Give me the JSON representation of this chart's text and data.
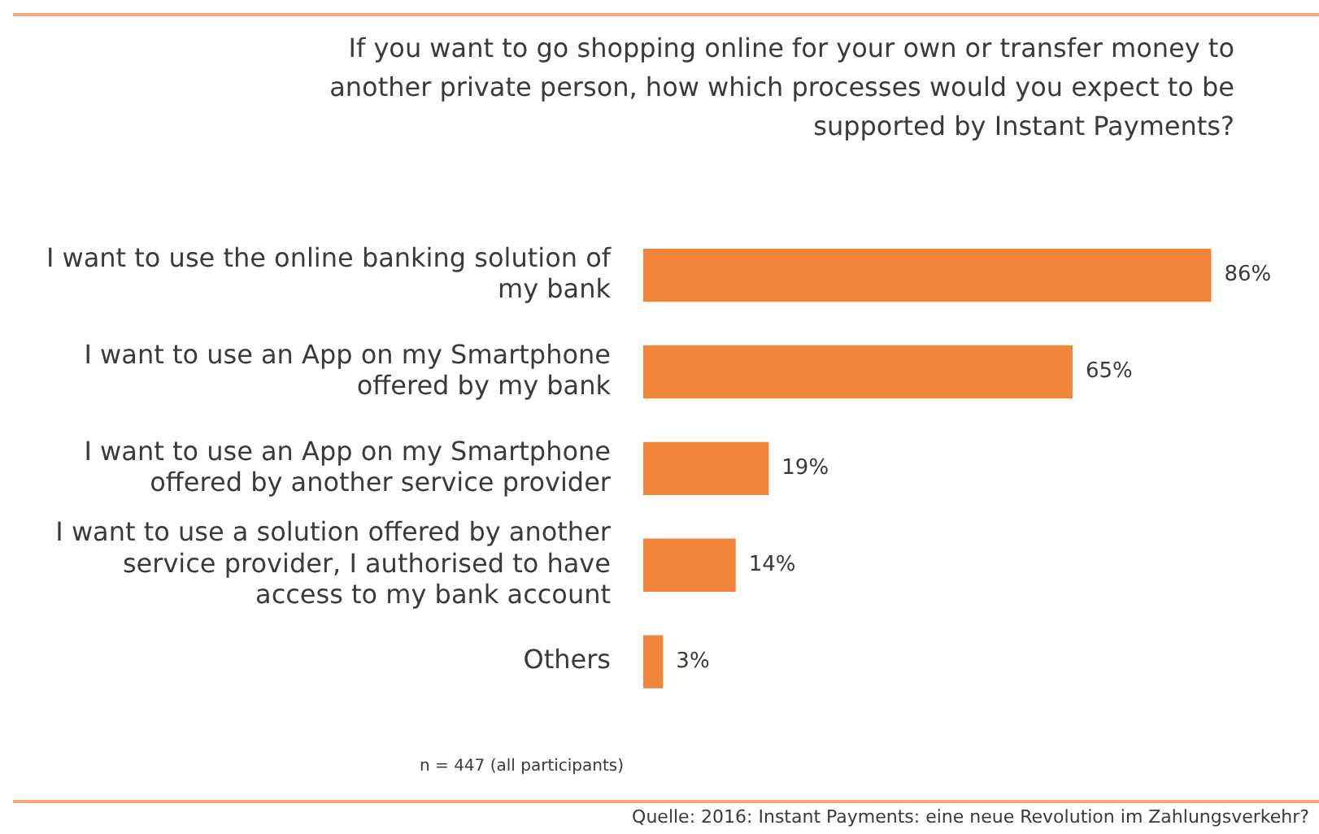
{
  "chart_data": {
    "type": "bar",
    "orientation": "horizontal",
    "title": "If you want to go shopping online for your own or transfer money to another private person, how which processes would you expect to be supported by Instant Payments?",
    "categories": [
      "I want to use the online banking solution of my bank",
      "I want to use an App on my Smartphone offered by my bank",
      "I want to use an App on my Smartphone offered by another service provider",
      "I want to use a solution offered by another service provider, I authorised to have access to my bank account",
      "Others"
    ],
    "values": [
      86,
      65,
      19,
      14,
      3
    ],
    "value_labels": [
      "86%",
      "65%",
      "19%",
      "14%",
      "3%"
    ],
    "color": "#f0843a",
    "tick_labels": "y",
    "legend": false,
    "annotations": [
      "n = 447 (all participants)",
      "Quelle: 2016: Instant Payments: eine neue Revolution im Zahlungsverkehr?"
    ]
  }
}
